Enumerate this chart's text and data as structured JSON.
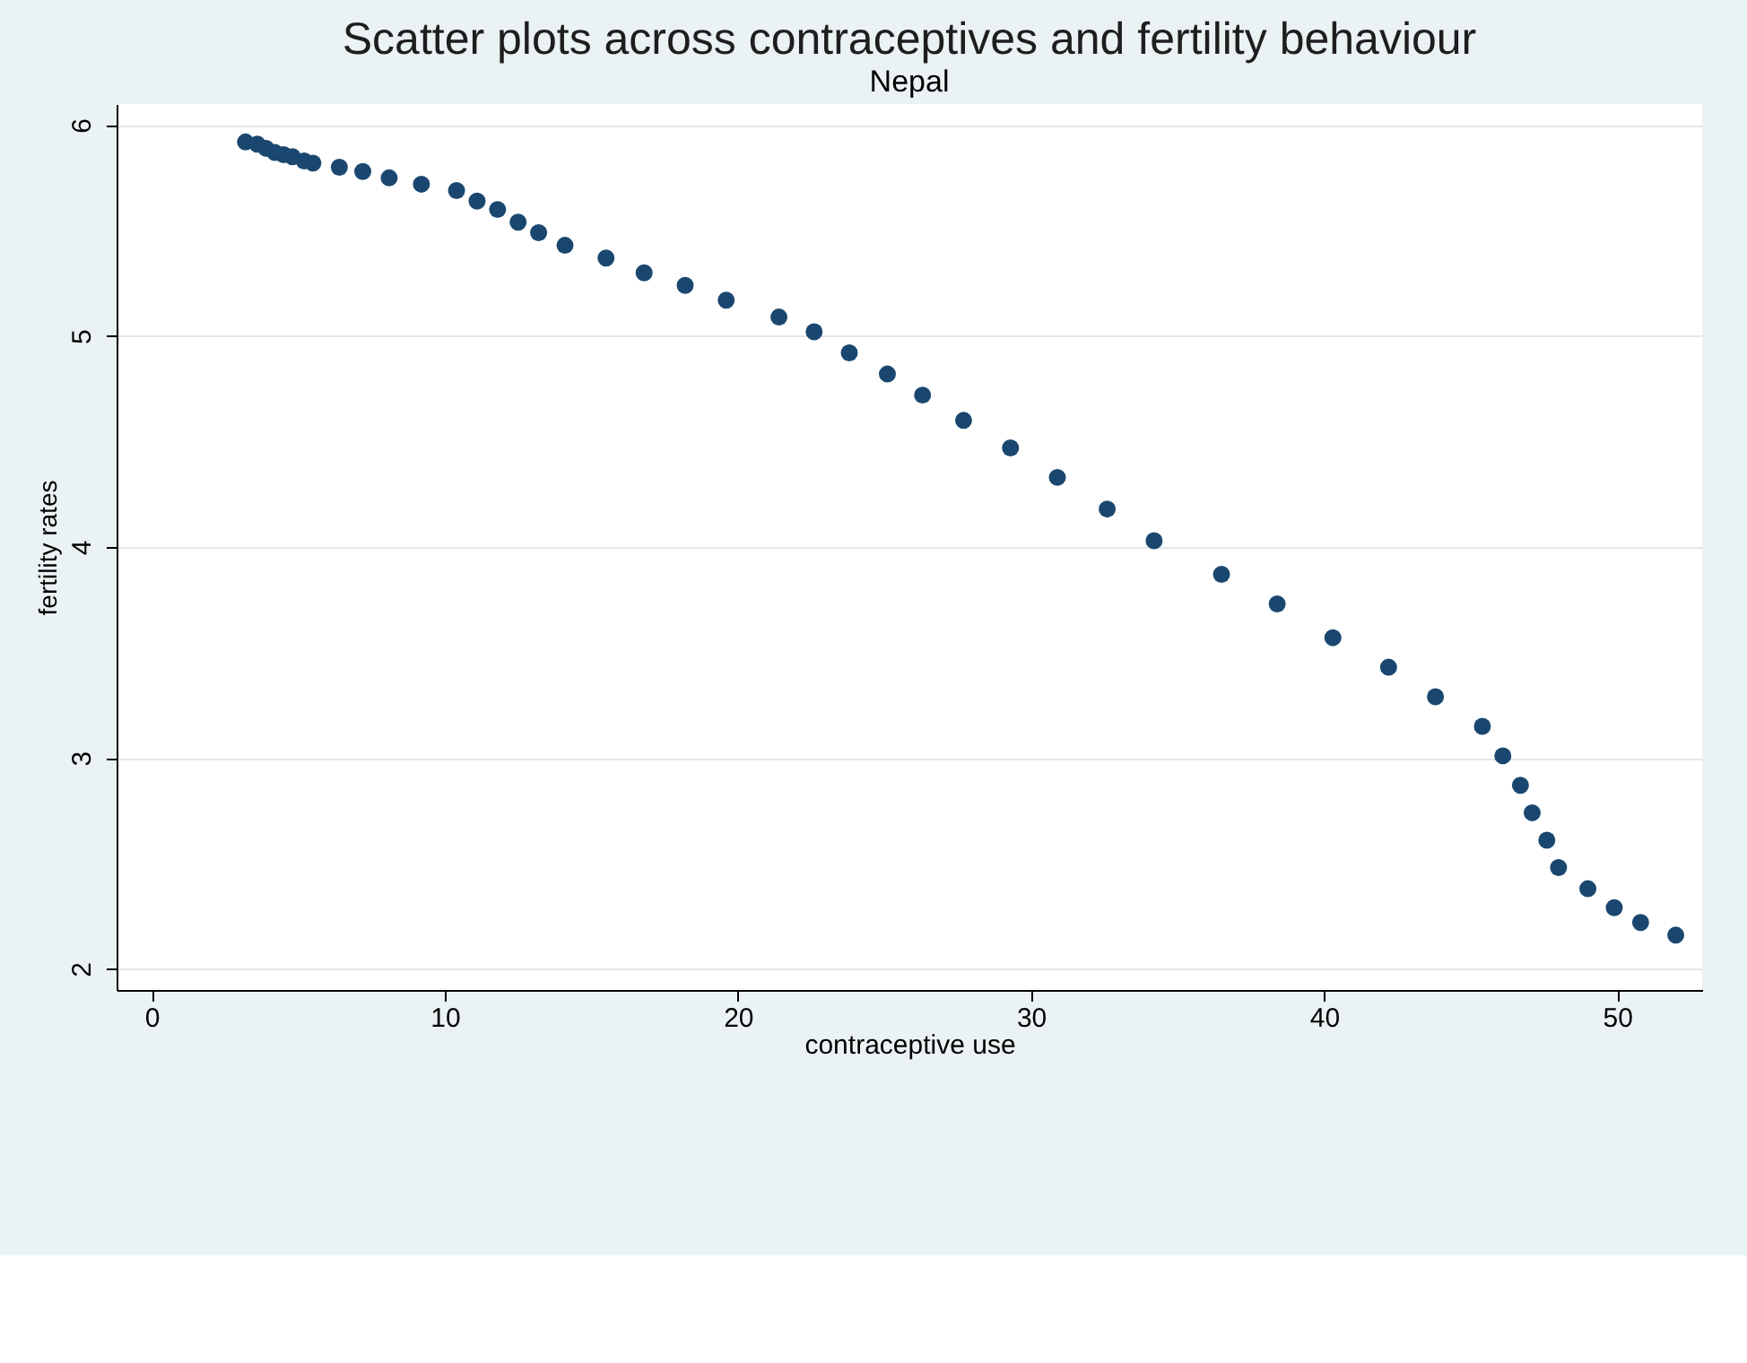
{
  "chart_data": {
    "type": "scatter",
    "title": "Scatter plots across contraceptives and fertility behaviour",
    "subtitle": "Nepal",
    "xlabel": "contraceptive use",
    "ylabel": "fertility rates",
    "x": [
      3.2,
      3.6,
      3.9,
      4.2,
      4.5,
      4.8,
      5.2,
      5.5,
      6.4,
      7.2,
      8.1,
      9.2,
      10.4,
      11.1,
      11.8,
      12.5,
      13.2,
      14.1,
      15.5,
      16.8,
      18.2,
      19.6,
      21.4,
      22.6,
      23.8,
      25.1,
      26.3,
      27.7,
      29.3,
      30.9,
      32.6,
      34.2,
      36.5,
      38.4,
      40.3,
      42.2,
      43.8,
      45.4,
      46.1,
      46.7,
      47.1,
      47.6,
      48.0,
      49.0,
      49.9,
      50.8,
      52.0
    ],
    "series": [
      {
        "color": "#1a476f",
        "values": [
          5.92,
          5.91,
          5.89,
          5.87,
          5.86,
          5.85,
          5.83,
          5.82,
          5.8,
          5.78,
          5.75,
          5.72,
          5.69,
          5.64,
          5.6,
          5.54,
          5.49,
          5.43,
          5.37,
          5.3,
          5.24,
          5.17,
          5.09,
          5.02,
          4.92,
          4.82,
          4.72,
          4.6,
          4.47,
          4.33,
          4.18,
          4.03,
          3.87,
          3.73,
          3.57,
          3.43,
          3.29,
          3.15,
          3.01,
          2.87,
          2.74,
          2.61,
          2.48,
          2.38,
          2.29,
          2.22,
          2.16
        ]
      }
    ],
    "xlim": [
      -1.2,
      52.9
    ],
    "xticks": [
      0,
      10,
      20,
      30,
      40,
      50
    ],
    "ylim": [
      1.9,
      6.1
    ],
    "yticks": [
      2,
      3,
      4,
      5,
      6
    ],
    "grid": "y",
    "marker": "circle"
  }
}
